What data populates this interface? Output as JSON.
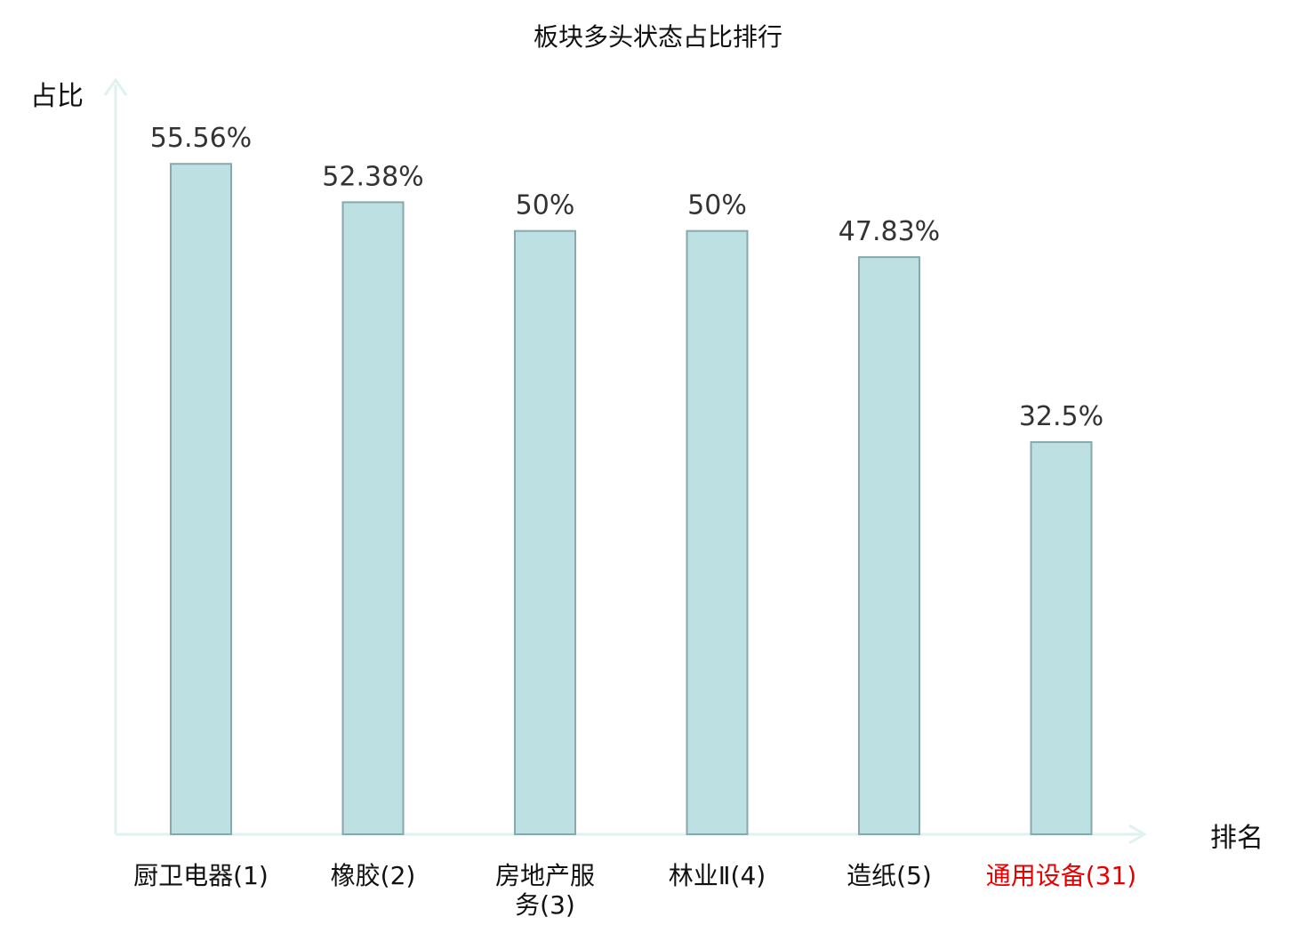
{
  "chart_data": {
    "type": "bar",
    "title": "板块多头状态占比排行",
    "xlabel": "排名",
    "ylabel": "占比",
    "categories": [
      "厨卫电器(1)",
      "橡胶(2)",
      "房地产服务(3)",
      "林业Ⅱ(4)",
      "造纸(5)",
      "通用设备(31)"
    ],
    "values": [
      55.56,
      52.38,
      50,
      50,
      47.83,
      32.5
    ],
    "value_labels": [
      "55.56%",
      "52.38%",
      "50%",
      "50%",
      "47.83%",
      "32.5%"
    ],
    "highlight_index": 5,
    "ylim": [
      0,
      60
    ],
    "grid": false,
    "legend": "none",
    "colors": {
      "bar_fill": "#bde0e3",
      "bar_stroke": "#86a8ae",
      "axis": "#dff2ef",
      "highlight_text": "#e60000",
      "text": "#111111",
      "value_text": "#333333"
    }
  }
}
